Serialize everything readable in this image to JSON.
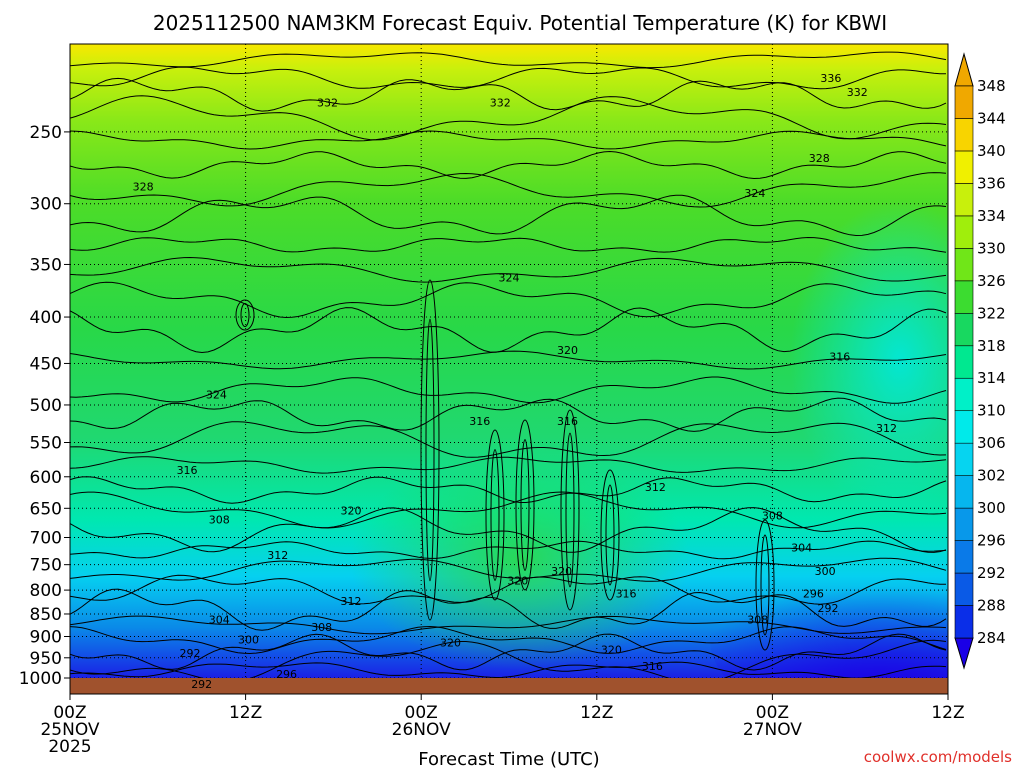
{
  "chart_data": {
    "type": "heatmap",
    "title": "2025112500 NAM3KM Forecast Equiv. Potential Temperature (K) for KBWI",
    "xlabel": "Forecast Time (UTC)",
    "ylabel": "",
    "x_ticks": [
      {
        "hour": 0,
        "line1": "00Z",
        "line2": "25NOV",
        "line3": "2025"
      },
      {
        "hour": 12,
        "line1": "12Z",
        "line2": "",
        "line3": ""
      },
      {
        "hour": 24,
        "line1": "00Z",
        "line2": "26NOV",
        "line3": ""
      },
      {
        "hour": 36,
        "line1": "12Z",
        "line2": "",
        "line3": ""
      },
      {
        "hour": 48,
        "line1": "00Z",
        "line2": "27NOV",
        "line3": ""
      },
      {
        "hour": 60,
        "line1": "12Z",
        "line2": "",
        "line3": ""
      }
    ],
    "xlim": [
      0,
      60
    ],
    "y_ticks": [
      250,
      300,
      350,
      400,
      450,
      500,
      550,
      600,
      650,
      700,
      750,
      800,
      850,
      900,
      950,
      1000
    ],
    "ylim": [
      1000,
      200
    ],
    "yscale": "log",
    "grid": true,
    "colorbar": {
      "levels": [
        284,
        288,
        292,
        296,
        300,
        302,
        306,
        310,
        314,
        318,
        322,
        326,
        330,
        334,
        336,
        340,
        344,
        348
      ],
      "colors": [
        "#1a00e6",
        "#0a2ee8",
        "#0a5ae6",
        "#0a7ae8",
        "#0898ea",
        "#06b6ee",
        "#06d4f0",
        "#00eaea",
        "#00f0c8",
        "#00e890",
        "#18d860",
        "#3cdc30",
        "#70e618",
        "#a0ee0c",
        "#c8f00c",
        "#f0f000",
        "#f8d400",
        "#f0a800"
      ],
      "extend": "both"
    },
    "contour_labels": [
      {
        "value": "332",
        "hour": 17.6,
        "p": 232
      },
      {
        "value": "332",
        "hour": 29.4,
        "p": 232
      },
      {
        "value": "336",
        "hour": 52.0,
        "p": 218
      },
      {
        "value": "332",
        "hour": 53.8,
        "p": 226
      },
      {
        "value": "328",
        "hour": 51.2,
        "p": 267
      },
      {
        "value": "328",
        "hour": 5.0,
        "p": 287
      },
      {
        "value": "324",
        "hour": 46.8,
        "p": 292
      },
      {
        "value": "324",
        "hour": 30.0,
        "p": 362
      },
      {
        "value": "320",
        "hour": 34.0,
        "p": 435
      },
      {
        "value": "316",
        "hour": 52.6,
        "p": 442
      },
      {
        "value": "324",
        "hour": 10.0,
        "p": 487
      },
      {
        "value": "316",
        "hour": 28.0,
        "p": 521
      },
      {
        "value": "316",
        "hour": 34.0,
        "p": 521
      },
      {
        "value": "312",
        "hour": 55.8,
        "p": 530
      },
      {
        "value": "316",
        "hour": 8.0,
        "p": 590
      },
      {
        "value": "312",
        "hour": 40.0,
        "p": 616
      },
      {
        "value": "320",
        "hour": 19.2,
        "p": 654
      },
      {
        "value": "308",
        "hour": 10.2,
        "p": 669
      },
      {
        "value": "308",
        "hour": 48.0,
        "p": 662
      },
      {
        "value": "304",
        "hour": 50.0,
        "p": 718
      },
      {
        "value": "312",
        "hour": 14.2,
        "p": 732
      },
      {
        "value": "320",
        "hour": 30.6,
        "p": 781
      },
      {
        "value": "320",
        "hour": 33.6,
        "p": 762
      },
      {
        "value": "300",
        "hour": 51.6,
        "p": 762
      },
      {
        "value": "316",
        "hour": 38.0,
        "p": 807
      },
      {
        "value": "296",
        "hour": 50.8,
        "p": 807
      },
      {
        "value": "312",
        "hour": 19.2,
        "p": 822
      },
      {
        "value": "292",
        "hour": 51.8,
        "p": 837
      },
      {
        "value": "304",
        "hour": 10.2,
        "p": 862
      },
      {
        "value": "308",
        "hour": 47.0,
        "p": 862
      },
      {
        "value": "308",
        "hour": 17.2,
        "p": 879
      },
      {
        "value": "300",
        "hour": 12.2,
        "p": 907
      },
      {
        "value": "320",
        "hour": 26.0,
        "p": 914
      },
      {
        "value": "320",
        "hour": 37.0,
        "p": 930
      },
      {
        "value": "292",
        "hour": 8.2,
        "p": 939
      },
      {
        "value": "316",
        "hour": 39.8,
        "p": 970
      },
      {
        "value": "296",
        "hour": 14.8,
        "p": 990
      },
      {
        "value": "292",
        "hour": 9.0,
        "p": 1015
      }
    ]
  },
  "credit": "coolwx.com/models"
}
